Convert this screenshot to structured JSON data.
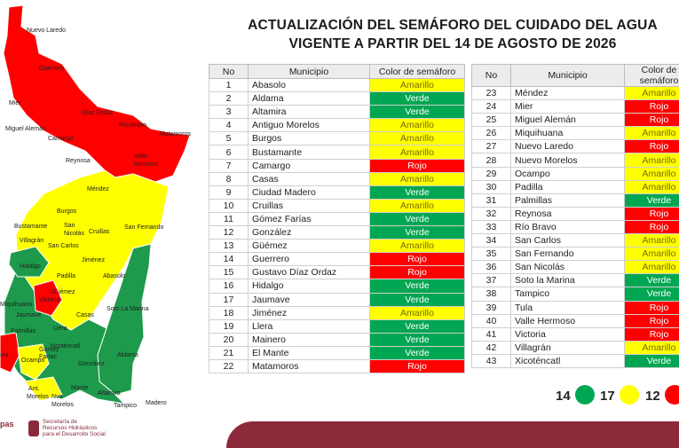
{
  "title": {
    "line1": "ACTUALIZACIÓN DEL SEMÁFORO DEL CUIDADO DEL AGUA",
    "line2": "VIGENTE A PARTIR DEL 14 DE AGOSTO DE 2026"
  },
  "table_headers": {
    "no": "No",
    "municipio": "Municipio",
    "color": "Color de semáforo"
  },
  "rows_left": [
    {
      "no": "1",
      "municipio": "Abasolo",
      "color": "Amarillo"
    },
    {
      "no": "2",
      "municipio": "Aldama",
      "color": "Verde"
    },
    {
      "no": "3",
      "municipio": "Altamira",
      "color": "Verde"
    },
    {
      "no": "4",
      "municipio": "Antiguo Morelos",
      "color": "Amarillo"
    },
    {
      "no": "5",
      "municipio": "Burgos",
      "color": "Amarillo"
    },
    {
      "no": "6",
      "municipio": "Bustamante",
      "color": "Amarillo"
    },
    {
      "no": "7",
      "municipio": "Camargo",
      "color": "Rojo"
    },
    {
      "no": "8",
      "municipio": "Casas",
      "color": "Amarillo"
    },
    {
      "no": "9",
      "municipio": "Ciudad Madero",
      "color": "Verde"
    },
    {
      "no": "10",
      "municipio": "Cruillas",
      "color": "Amarillo"
    },
    {
      "no": "11",
      "municipio": "Gómez Farías",
      "color": "Verde"
    },
    {
      "no": "12",
      "municipio": "González",
      "color": "Verde"
    },
    {
      "no": "13",
      "municipio": "Güémez",
      "color": "Amarillo"
    },
    {
      "no": "14",
      "municipio": "Guerrero",
      "color": "Rojo"
    },
    {
      "no": "15",
      "municipio": "Gustavo Díaz Ordaz",
      "color": "Rojo"
    },
    {
      "no": "16",
      "municipio": "Hidalgo",
      "color": "Verde"
    },
    {
      "no": "17",
      "municipio": "Jaumave",
      "color": "Verde"
    },
    {
      "no": "18",
      "municipio": "Jiménez",
      "color": "Amarillo"
    },
    {
      "no": "19",
      "municipio": "Llera",
      "color": "Verde"
    },
    {
      "no": "20",
      "municipio": "Mainero",
      "color": "Verde"
    },
    {
      "no": "21",
      "municipio": "El Mante",
      "color": "Verde"
    },
    {
      "no": "22",
      "municipio": "Matamoros",
      "color": "Rojo"
    }
  ],
  "rows_right": [
    {
      "no": "23",
      "municipio": "Méndez",
      "color": "Amarillo"
    },
    {
      "no": "24",
      "municipio": "Mier",
      "color": "Rojo"
    },
    {
      "no": "25",
      "municipio": "Miguel Alemán",
      "color": "Rojo"
    },
    {
      "no": "26",
      "municipio": "Miquihuana",
      "color": "Amarillo"
    },
    {
      "no": "27",
      "municipio": "Nuevo Laredo",
      "color": "Rojo"
    },
    {
      "no": "28",
      "municipio": "Nuevo Morelos",
      "color": "Amarillo"
    },
    {
      "no": "29",
      "municipio": "Ocampo",
      "color": "Amarillo"
    },
    {
      "no": "30",
      "municipio": "Padilla",
      "color": "Amarillo"
    },
    {
      "no": "31",
      "municipio": "Palmillas",
      "color": "Verde"
    },
    {
      "no": "32",
      "municipio": "Reynosa",
      "color": "Rojo"
    },
    {
      "no": "33",
      "municipio": "Río Bravo",
      "color": "Rojo"
    },
    {
      "no": "34",
      "municipio": "San Carlos",
      "color": "Amarillo"
    },
    {
      "no": "35",
      "municipio": "San Fernando",
      "color": "Amarillo"
    },
    {
      "no": "36",
      "municipio": "San Nicolás",
      "color": "Amarillo"
    },
    {
      "no": "37",
      "municipio": "Soto la Marina",
      "color": "Verde"
    },
    {
      "no": "38",
      "municipio": "Tampico",
      "color": "Verde"
    },
    {
      "no": "39",
      "municipio": "Tula",
      "color": "Rojo"
    },
    {
      "no": "40",
      "municipio": "Valle Hermoso",
      "color": "Rojo"
    },
    {
      "no": "41",
      "municipio": "Victoria",
      "color": "Rojo"
    },
    {
      "no": "42",
      "municipio": "Villagrán",
      "color": "Amarillo"
    },
    {
      "no": "43",
      "municipio": "Xicoténcatl",
      "color": "Verde"
    }
  ],
  "legend": [
    {
      "count": "14",
      "color": "#00a651"
    },
    {
      "count": "17",
      "color": "#ffff00"
    },
    {
      "count": "12",
      "color": "#ff0000"
    }
  ],
  "map_labels": {
    "nuevo_laredo": "Nuevo Laredo",
    "guerrero": "Guerrero",
    "mier": "Mier",
    "diaz_ordaz": "Díaz Ordaz",
    "rio_bravo": "Río Bravo",
    "matamoros": "Matamoros",
    "miguel_aleman": "Miguel Alemán",
    "camargo": "Camargo",
    "reynosa": "Reynosa",
    "valle_1": "Valle",
    "valle_2": "hermoso",
    "mendez": "Méndez",
    "burgos": "Burgos",
    "bustamante": "Bustamante",
    "san_1": "San",
    "san_2": "Nicolás",
    "cruillas": "Cruillas",
    "san_fernando": "San Fernando",
    "villagran": "Villagrán",
    "san_carlos": "San Carlos",
    "hidalgo": "Hidalgo",
    "jimenez": "Jiménez",
    "padilla": "Padilla",
    "abasolo": "Abasolo",
    "guemez": "Güémez",
    "victoria": "Victoria",
    "miquihuana": "Miquihuana",
    "jaumave": "Jaumave",
    "casas": "Casas",
    "soto_la_marina": "Soto La Marina",
    "palmillas": "Palmillas",
    "llera": "Llera",
    "tula": "ula",
    "xicotencatl": "Xicoténcatl",
    "ocampo": "Ocampo",
    "gomez": "Gómez",
    "farias": "Farías",
    "aldama": "Aldama",
    "gonzalez": "González",
    "ant": "Ant.",
    "morelos": "Morelos",
    "mante": "Mante",
    "nvo": "Nvo",
    "morelos2": "Morelos",
    "altamira": "Altamira",
    "madero": "Madero",
    "tampico": "Tampico"
  },
  "footer": {
    "logo_left": "pas",
    "secretaria_1": "Secretaría de",
    "secretaria_2": "Recursos Hidráulicos",
    "secretaria_3": "para el Desarrollo Social"
  }
}
